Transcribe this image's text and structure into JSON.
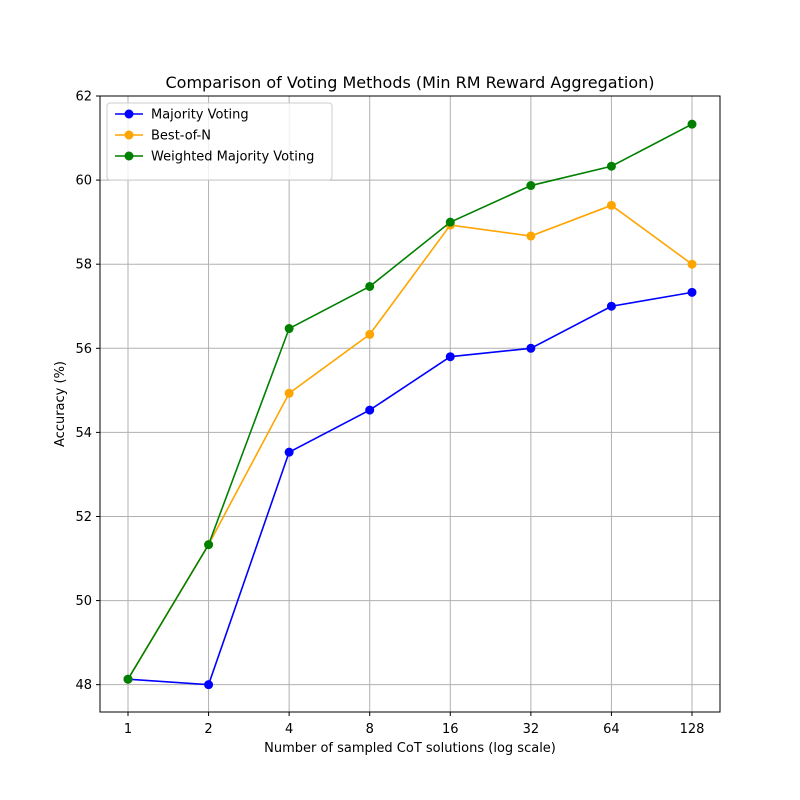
{
  "chart_data": {
    "type": "line",
    "title": "Comparison of Voting Methods (Min RM Reward Aggregation)",
    "xlabel": "Number of sampled CoT solutions (log scale)",
    "ylabel": "Accuracy (%)",
    "x_scale": "log2",
    "x": [
      1,
      2,
      4,
      8,
      16,
      32,
      64,
      128
    ],
    "x_tick_labels": [
      "1",
      "2",
      "4",
      "8",
      "16",
      "32",
      "64",
      "128"
    ],
    "y_ticks": [
      48,
      50,
      52,
      54,
      56,
      58,
      60,
      62
    ],
    "ylim": [
      47.35,
      62.0
    ],
    "grid": true,
    "legend_position": "top-left",
    "series": [
      {
        "name": "Majority Voting",
        "color": "#0000ff",
        "marker": "circle",
        "values": [
          48.13,
          48.0,
          53.53,
          54.53,
          55.8,
          56.0,
          57.0,
          57.33
        ]
      },
      {
        "name": "Best-of-N",
        "color": "#ffa500",
        "marker": "circle",
        "values": [
          48.13,
          51.33,
          54.93,
          56.33,
          58.93,
          58.67,
          59.4,
          58.0
        ]
      },
      {
        "name": "Weighted Majority Voting",
        "color": "#008000",
        "marker": "circle",
        "values": [
          48.13,
          51.33,
          56.47,
          57.47,
          59.0,
          59.87,
          60.33,
          61.33
        ]
      }
    ]
  }
}
